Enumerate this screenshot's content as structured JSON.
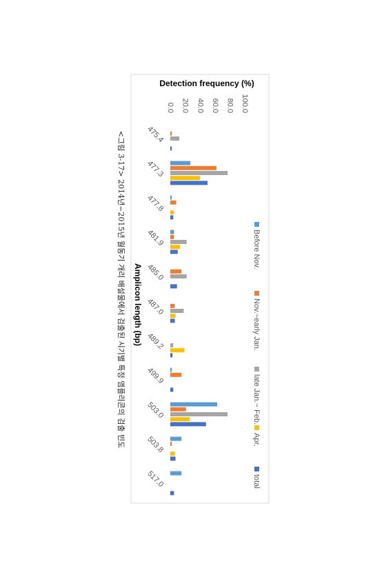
{
  "chart_data": {
    "type": "bar",
    "y_label": "Detection frequency (%)",
    "x_label": "Amplicon length (bp)",
    "caption": "<그림 3-17> 2014년~2015년 월동기 개리 배설물에서 검출된 시기별 특정 앰플리콘의 검출 빈도",
    "categories": [
      "475.4",
      "477.3",
      "477.8",
      "481.9",
      "485.0",
      "487.0",
      "489.2",
      "499.9",
      "503.0",
      "503.8",
      "517.0"
    ],
    "series": [
      {
        "name": "Before Nov.",
        "color": "#5b9bd5",
        "values": [
          0,
          27,
          2,
          5,
          0,
          0,
          0,
          2,
          63,
          15,
          15
        ]
      },
      {
        "name": "Nov.~early Jan.",
        "color": "#ed7d31",
        "values": [
          2,
          62,
          8,
          5,
          15,
          6,
          0,
          15,
          21,
          2,
          0
        ]
      },
      {
        "name": "late Jan.~ Feb.",
        "color": "#a5a5a5",
        "values": [
          12,
          77,
          0,
          22,
          22,
          18,
          4,
          0,
          77,
          0,
          0
        ]
      },
      {
        "name": "Apr.",
        "color": "#ffc000",
        "values": [
          0,
          40,
          5,
          13,
          0,
          7,
          19,
          0,
          26,
          6,
          0
        ]
      },
      {
        "name": "total",
        "color": "#4472c4",
        "values": [
          2,
          50,
          4,
          10,
          9,
          6,
          3,
          4,
          48,
          7,
          5
        ]
      }
    ],
    "ylim": [
      0,
      100
    ],
    "yticks": [
      {
        "value": 0,
        "label": "0.0"
      },
      {
        "value": 20,
        "label": "20.0"
      },
      {
        "value": 40,
        "label": "40.0"
      },
      {
        "value": 60,
        "label": "60.0"
      },
      {
        "value": 80,
        "label": "80.0"
      },
      {
        "value": 100,
        "label": "100.0"
      }
    ],
    "legend": "top",
    "grid": false
  }
}
